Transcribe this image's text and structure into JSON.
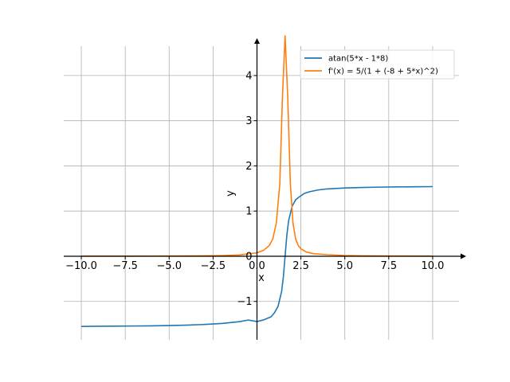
{
  "chart_data": {
    "type": "line",
    "title": "",
    "xlabel": "x",
    "ylabel": "y",
    "xlim": [
      -11,
      11.5
    ],
    "ylim": [
      -1.85,
      4.65
    ],
    "grid": true,
    "legend_position": "top-right",
    "x_ticks": [
      -10,
      -7.5,
      -5,
      -2.5,
      0,
      2.5,
      5,
      7.5,
      10
    ],
    "x_tick_labels": [
      "−10.0",
      "−7.5",
      "−5.0",
      "−2.5",
      "0.0",
      "2.5",
      "5.0",
      "7.5",
      "10.0"
    ],
    "y_ticks": [
      -1,
      0,
      1,
      2,
      3,
      4
    ],
    "y_tick_labels": [
      "−1",
      "0",
      "1",
      "2",
      "3",
      "4"
    ],
    "series": [
      {
        "name": "atan(5*x - 1*8)",
        "color": "#1f77b4",
        "x": [
          -10,
          -9,
          -8,
          -7,
          -6,
          -5,
          -4,
          -3,
          -2,
          -1,
          -0.5,
          0,
          0.4,
          0.8,
          1.0,
          1.2,
          1.4,
          1.5,
          1.6,
          1.7,
          1.8,
          2.0,
          2.2,
          2.4,
          2.7,
          3,
          3.5,
          4,
          5,
          6,
          7,
          8,
          9,
          10
        ],
        "y": [
          -1.553,
          -1.55,
          -1.548,
          -1.544,
          -1.54,
          -1.534,
          -1.525,
          -1.51,
          -1.488,
          -1.448,
          -1.412,
          -1.446,
          -1.406,
          -1.342,
          -1.249,
          -1.107,
          -0.785,
          -0.464,
          0.0,
          0.464,
          0.785,
          1.107,
          1.249,
          1.312,
          1.391,
          1.429,
          1.468,
          1.49,
          1.512,
          1.523,
          1.53,
          1.535,
          1.538,
          1.541
        ]
      },
      {
        "name": "f'(x) = 5/(1 + (-8 + 5*x)^2)",
        "color": "#ff7f0e",
        "x": [
          -10,
          -8,
          -6,
          -4,
          -3,
          -2,
          -1,
          0,
          0.4,
          0.7,
          0.9,
          1.1,
          1.3,
          1.45,
          1.6,
          1.75,
          1.9,
          2.05,
          2.2,
          2.35,
          2.5,
          2.8,
          3.2,
          4,
          5,
          6,
          8,
          10
        ],
        "y": [
          0.002,
          0.003,
          0.004,
          0.007,
          0.009,
          0.015,
          0.029,
          0.077,
          0.137,
          0.238,
          0.381,
          0.735,
          1.607,
          3.529,
          4.878,
          3.529,
          1.607,
          0.735,
          0.381,
          0.238,
          0.164,
          0.095,
          0.058,
          0.035,
          0.017,
          0.01,
          0.005,
          0.003
        ]
      }
    ]
  }
}
